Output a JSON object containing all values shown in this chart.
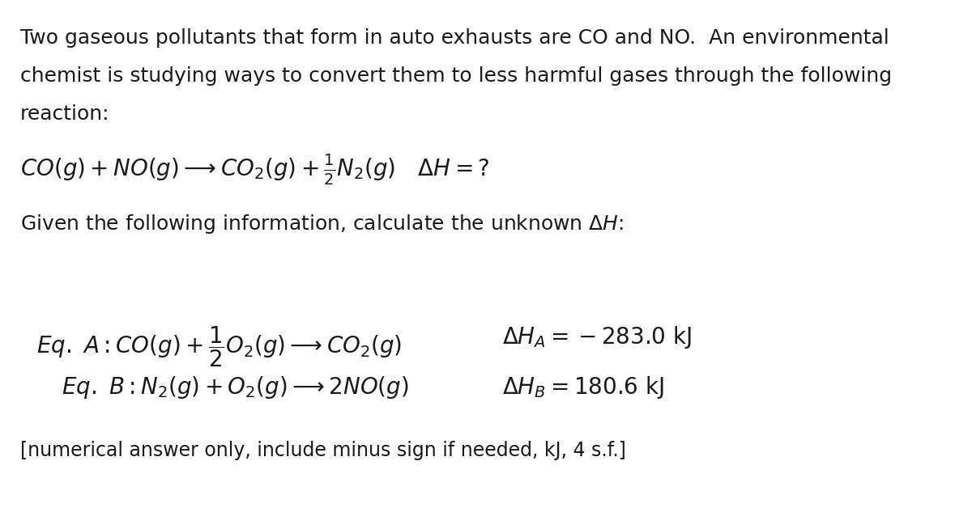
{
  "background_color": "#ffffff",
  "text_color": "#1a1a1a",
  "figsize": [
    12.0,
    6.33
  ],
  "dpi": 100,
  "paragraph1": "Two gaseous pollutants that form in auto exhausts are CO and NO.  An environmental\nchemist is studying ways to convert them to less harmful gases through the following\nreaction:",
  "reaction_main": "$CO(g) + NO(g) \\longrightarrow CO_2(g) + \\frac{1}{2}N_2(g) \\quad \\Delta H =?$",
  "given_text": "Given the following information, calculate the unknown $\\Delta H$:",
  "eq_a_left": "$Eq. \\ A : CO(g) + \\dfrac{1}{2}O_2(g) \\longrightarrow CO_2(g)$",
  "eq_a_right": "$\\Delta H_A = -283.0 \\ \\mathrm{kJ}$",
  "eq_b_left": "$Eq. \\ B : N_2(g) + O_2(g) \\longrightarrow 2NO(g)$",
  "eq_b_right": "$\\Delta H_B = 180.6 \\ \\mathrm{kJ}$",
  "footer": "[numerical answer only, include minus sign if needed, kJ, 4 s.f.]",
  "font_size_paragraph": 18,
  "font_size_reaction": 20,
  "font_size_given": 18,
  "font_size_eq": 20,
  "font_size_footer": 17
}
